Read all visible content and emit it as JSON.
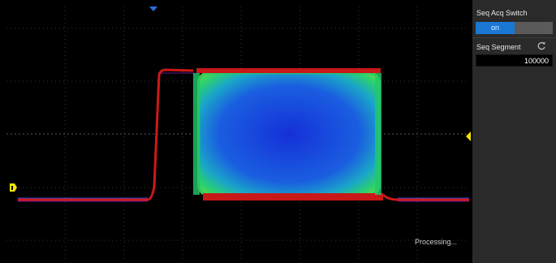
{
  "display": {
    "status": "Processing..."
  },
  "panel": {
    "seq_acq_switch": {
      "label": "Seq Acq Switch",
      "value": "on"
    },
    "seq_segment": {
      "label": "Seq Segment",
      "value": "100000",
      "reset_icon": "refresh-icon"
    }
  },
  "colors": {
    "grid": "#3c3c3c",
    "trace_red": "#d01818",
    "persistence_blue": "#1a3fd8",
    "persistence_green": "#22c860",
    "marker_yellow": "#f5e400",
    "trigger_blue": "#2a6fe0",
    "accent_blue": "#1a78d4"
  },
  "icons": {
    "trigger_position": "trigger-position-marker-icon",
    "channel_marker": "channel-1-marker-icon",
    "trigger_level": "trigger-level-marker-icon"
  }
}
